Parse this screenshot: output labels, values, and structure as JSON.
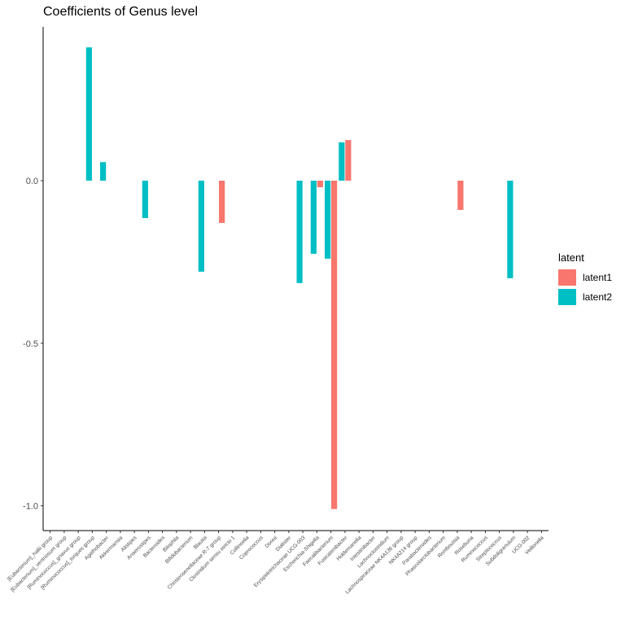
{
  "chart_data": {
    "type": "bar",
    "title": "Coefficients of Genus level",
    "xlabel": "",
    "ylabel": "",
    "ylim": [
      -1.08,
      0.48
    ],
    "yticks": [
      0.0,
      -0.5,
      -1.0
    ],
    "ytick_labels": [
      "0.0",
      "-0.5",
      "-1.0"
    ],
    "grid": false,
    "legend": {
      "title": "latent",
      "position": "right"
    },
    "categories": [
      "[Eubacterium]_hallii group",
      "[Eubacterium]_ventriosum group",
      "[Ruminococcus]_gnavus group",
      "[Ruminococcus]_torques group",
      "Agathobacter",
      "Akkermansia",
      "Alistipes",
      "Anaerostipes",
      "Bacteroides",
      "Bilophila",
      "Bifidobacterium",
      "Blautia",
      "Christensenellaceae R-7 group",
      "Clostridium sensu stricto 1",
      "Collinsella",
      "Coprococcus",
      "Dorea",
      "Dialister",
      "Erysipelotrichaceae UCG-003",
      "Escherichia-Shigella",
      "Faecalibacterium",
      "Fusicatenibacter",
      "Holdemanella",
      "Intestinibacter",
      "Lachnoclostridium",
      "Lachnospiraceae NK4A136 group",
      "NK4A214 group",
      "Parabacteroides",
      "Phascolarctobacterium",
      "Romboutsia",
      "Roseburia",
      "Ruminococcus",
      "Streptococcus",
      "Subdoligranulum",
      "UCG-002",
      "Veillonella"
    ],
    "series": [
      {
        "name": "latent1",
        "color": "#F8766D",
        "values": [
          0,
          0,
          0,
          0,
          0,
          0,
          0,
          0,
          0,
          0,
          0,
          0,
          -0.13,
          0,
          0,
          0,
          0,
          0,
          0,
          -0.02,
          -1.01,
          0.125,
          0,
          0,
          0,
          0,
          0,
          0,
          0,
          -0.09,
          0,
          0,
          0,
          0,
          0,
          0
        ]
      },
      {
        "name": "latent2",
        "color": "#00BFC4",
        "values": [
          0,
          0,
          0,
          0.41,
          0.057,
          0,
          0,
          -0.115,
          0,
          0,
          0,
          -0.28,
          0,
          0,
          0,
          0,
          0,
          0,
          -0.315,
          -0.225,
          -0.24,
          0.118,
          0,
          0,
          0,
          0,
          0,
          0,
          0,
          0,
          0,
          0,
          0,
          -0.3,
          0,
          0
        ]
      }
    ]
  }
}
